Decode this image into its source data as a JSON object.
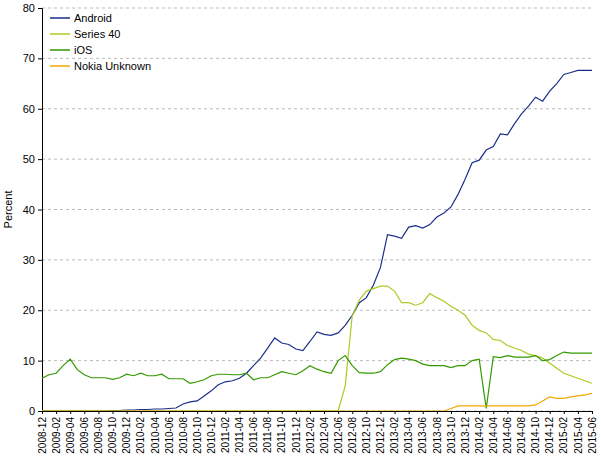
{
  "chart_data": {
    "type": "line",
    "y_label": "Percent",
    "categories": [
      "2008-12",
      null,
      "2009-02",
      null,
      "2009-04",
      null,
      "2009-06",
      null,
      "2009-08",
      null,
      "2009-10",
      null,
      "2009-12",
      null,
      "2010-02",
      null,
      "2010-04",
      null,
      "2010-06",
      null,
      "2010-08",
      null,
      "2010-10",
      null,
      "2010-12",
      null,
      "2011-02",
      null,
      "2011-04",
      null,
      "2011-06",
      null,
      "2011-08",
      null,
      "2011-10",
      null,
      "2011-12",
      null,
      "2012-02",
      null,
      "2012-04",
      null,
      "2012-06",
      null,
      "2012-08",
      null,
      "2012-10",
      null,
      "2012-12",
      null,
      "2013-02",
      null,
      "2013-04",
      null,
      "2013-06",
      null,
      "2013-08",
      null,
      "2013-10",
      null,
      "2013-12",
      null,
      "2014-02",
      null,
      "2014-04",
      null,
      "2014-06",
      null,
      "2014-08",
      null,
      "2014-10",
      null,
      "2014-12",
      null,
      "2015-02",
      null,
      "2015-04",
      null,
      "2015-06"
    ],
    "series": [
      {
        "name": "Android",
        "color": "#1a2f8a",
        "values": [
          0,
          0,
          0,
          0,
          0,
          0,
          0,
          0,
          0,
          0,
          0.1,
          0.1,
          0.2,
          0.2,
          0.3,
          0.3,
          0.4,
          0.4,
          0.5,
          0.6,
          1.4,
          1.8,
          2.0,
          3.0,
          4.0,
          5.2,
          5.8,
          6.0,
          6.5,
          7.5,
          9.0,
          10.5,
          12.5,
          14.5,
          13.5,
          13.2,
          12.3,
          12.0,
          13.8,
          15.7,
          15.2,
          15.0,
          15.5,
          17.0,
          19.0,
          21.5,
          22.5,
          25.0,
          28.5,
          35.0,
          34.7,
          34.3,
          36.5,
          36.8,
          36.3,
          37.0,
          38.5,
          39.3,
          40.5,
          43.0,
          46.0,
          49.3,
          49.8,
          51.8,
          52.5,
          55.0,
          54.8,
          57.0,
          59.0,
          60.5,
          62.3,
          61.5,
          63.5,
          65.0,
          66.8,
          67.2,
          67.6,
          67.6,
          67.6
        ]
      },
      {
        "name": "Series 40",
        "color": "#aacc22",
        "values": [
          0,
          0,
          0,
          0,
          0,
          0,
          0,
          0,
          0,
          0,
          0,
          0,
          0,
          0,
          0,
          0,
          0,
          0,
          0,
          0,
          0,
          0,
          0,
          0,
          0,
          0,
          0,
          0,
          0,
          0,
          0,
          0,
          0,
          0,
          0,
          0,
          0,
          0,
          0,
          0,
          0,
          0,
          0,
          5,
          19,
          22,
          23.8,
          24.3,
          24.8,
          24.8,
          23.8,
          21.5,
          21.5,
          21.0,
          21.5,
          23.3,
          22.5,
          21.8,
          20.8,
          20.0,
          19.0,
          17.0,
          16.0,
          15.5,
          14.2,
          14.0,
          13.0,
          12.5,
          12.0,
          11.3,
          11.0,
          10.5,
          9.5,
          8.5,
          7.5,
          7.0,
          6.5,
          6.0,
          5.5
        ]
      },
      {
        "name": "iOS",
        "color": "#339900",
        "values": [
          6.5,
          7.2,
          7.5,
          9,
          10.3,
          8.2,
          7.2,
          6.6,
          6.6,
          6.6,
          6.3,
          6.6,
          7.3,
          7.0,
          7.5,
          7.0,
          7.0,
          7.3,
          6.4,
          6.4,
          6.4,
          5.5,
          5.8,
          6.2,
          7.0,
          7.3,
          7.3,
          7.2,
          7.2,
          7.5,
          6.2,
          6.6,
          6.6,
          7.2,
          7.8,
          7.5,
          7.2,
          8.0,
          9.0,
          8.3,
          7.8,
          7.5,
          10.0,
          11.0,
          9.0,
          7.6,
          7.5,
          7.5,
          7.8,
          9.2,
          10.2,
          10.5,
          10.3,
          10.0,
          9.3,
          9.0,
          9.0,
          9.0,
          8.6,
          9.0,
          9.0,
          10.0,
          10.3,
          0.5,
          10.8,
          10.6,
          11.0,
          10.7,
          10.7,
          10.7,
          11.0,
          10.0,
          10.2,
          11.0,
          11.7,
          11.5,
          11.5,
          11.5,
          11.5
        ]
      },
      {
        "name": "Nokia Unknown",
        "color": "#f0a800",
        "values": [
          0,
          0,
          0,
          0,
          0,
          0,
          0,
          0,
          0,
          0,
          0,
          0,
          0,
          0,
          0,
          0,
          0,
          0,
          0,
          0,
          0,
          0,
          0,
          0,
          0,
          0,
          0,
          0,
          0,
          0,
          0,
          0,
          0,
          0,
          0,
          0,
          0,
          0,
          0,
          0,
          0,
          0,
          0,
          0,
          0,
          0,
          0,
          0,
          0,
          0,
          0,
          0,
          0,
          0,
          0,
          0,
          0,
          0,
          0.5,
          1.0,
          1.0,
          1.0,
          1.0,
          1.0,
          1.0,
          1.0,
          1.0,
          1.0,
          1.0,
          1.0,
          1.2,
          2.0,
          2.8,
          2.5,
          2.5,
          2.8,
          3.0,
          3.2,
          3.5
        ]
      }
    ],
    "ylim": [
      0,
      80
    ],
    "yticks": [
      0,
      10,
      20,
      30,
      40,
      50,
      60,
      70,
      80
    ],
    "grid": true,
    "legend": "top-left"
  }
}
